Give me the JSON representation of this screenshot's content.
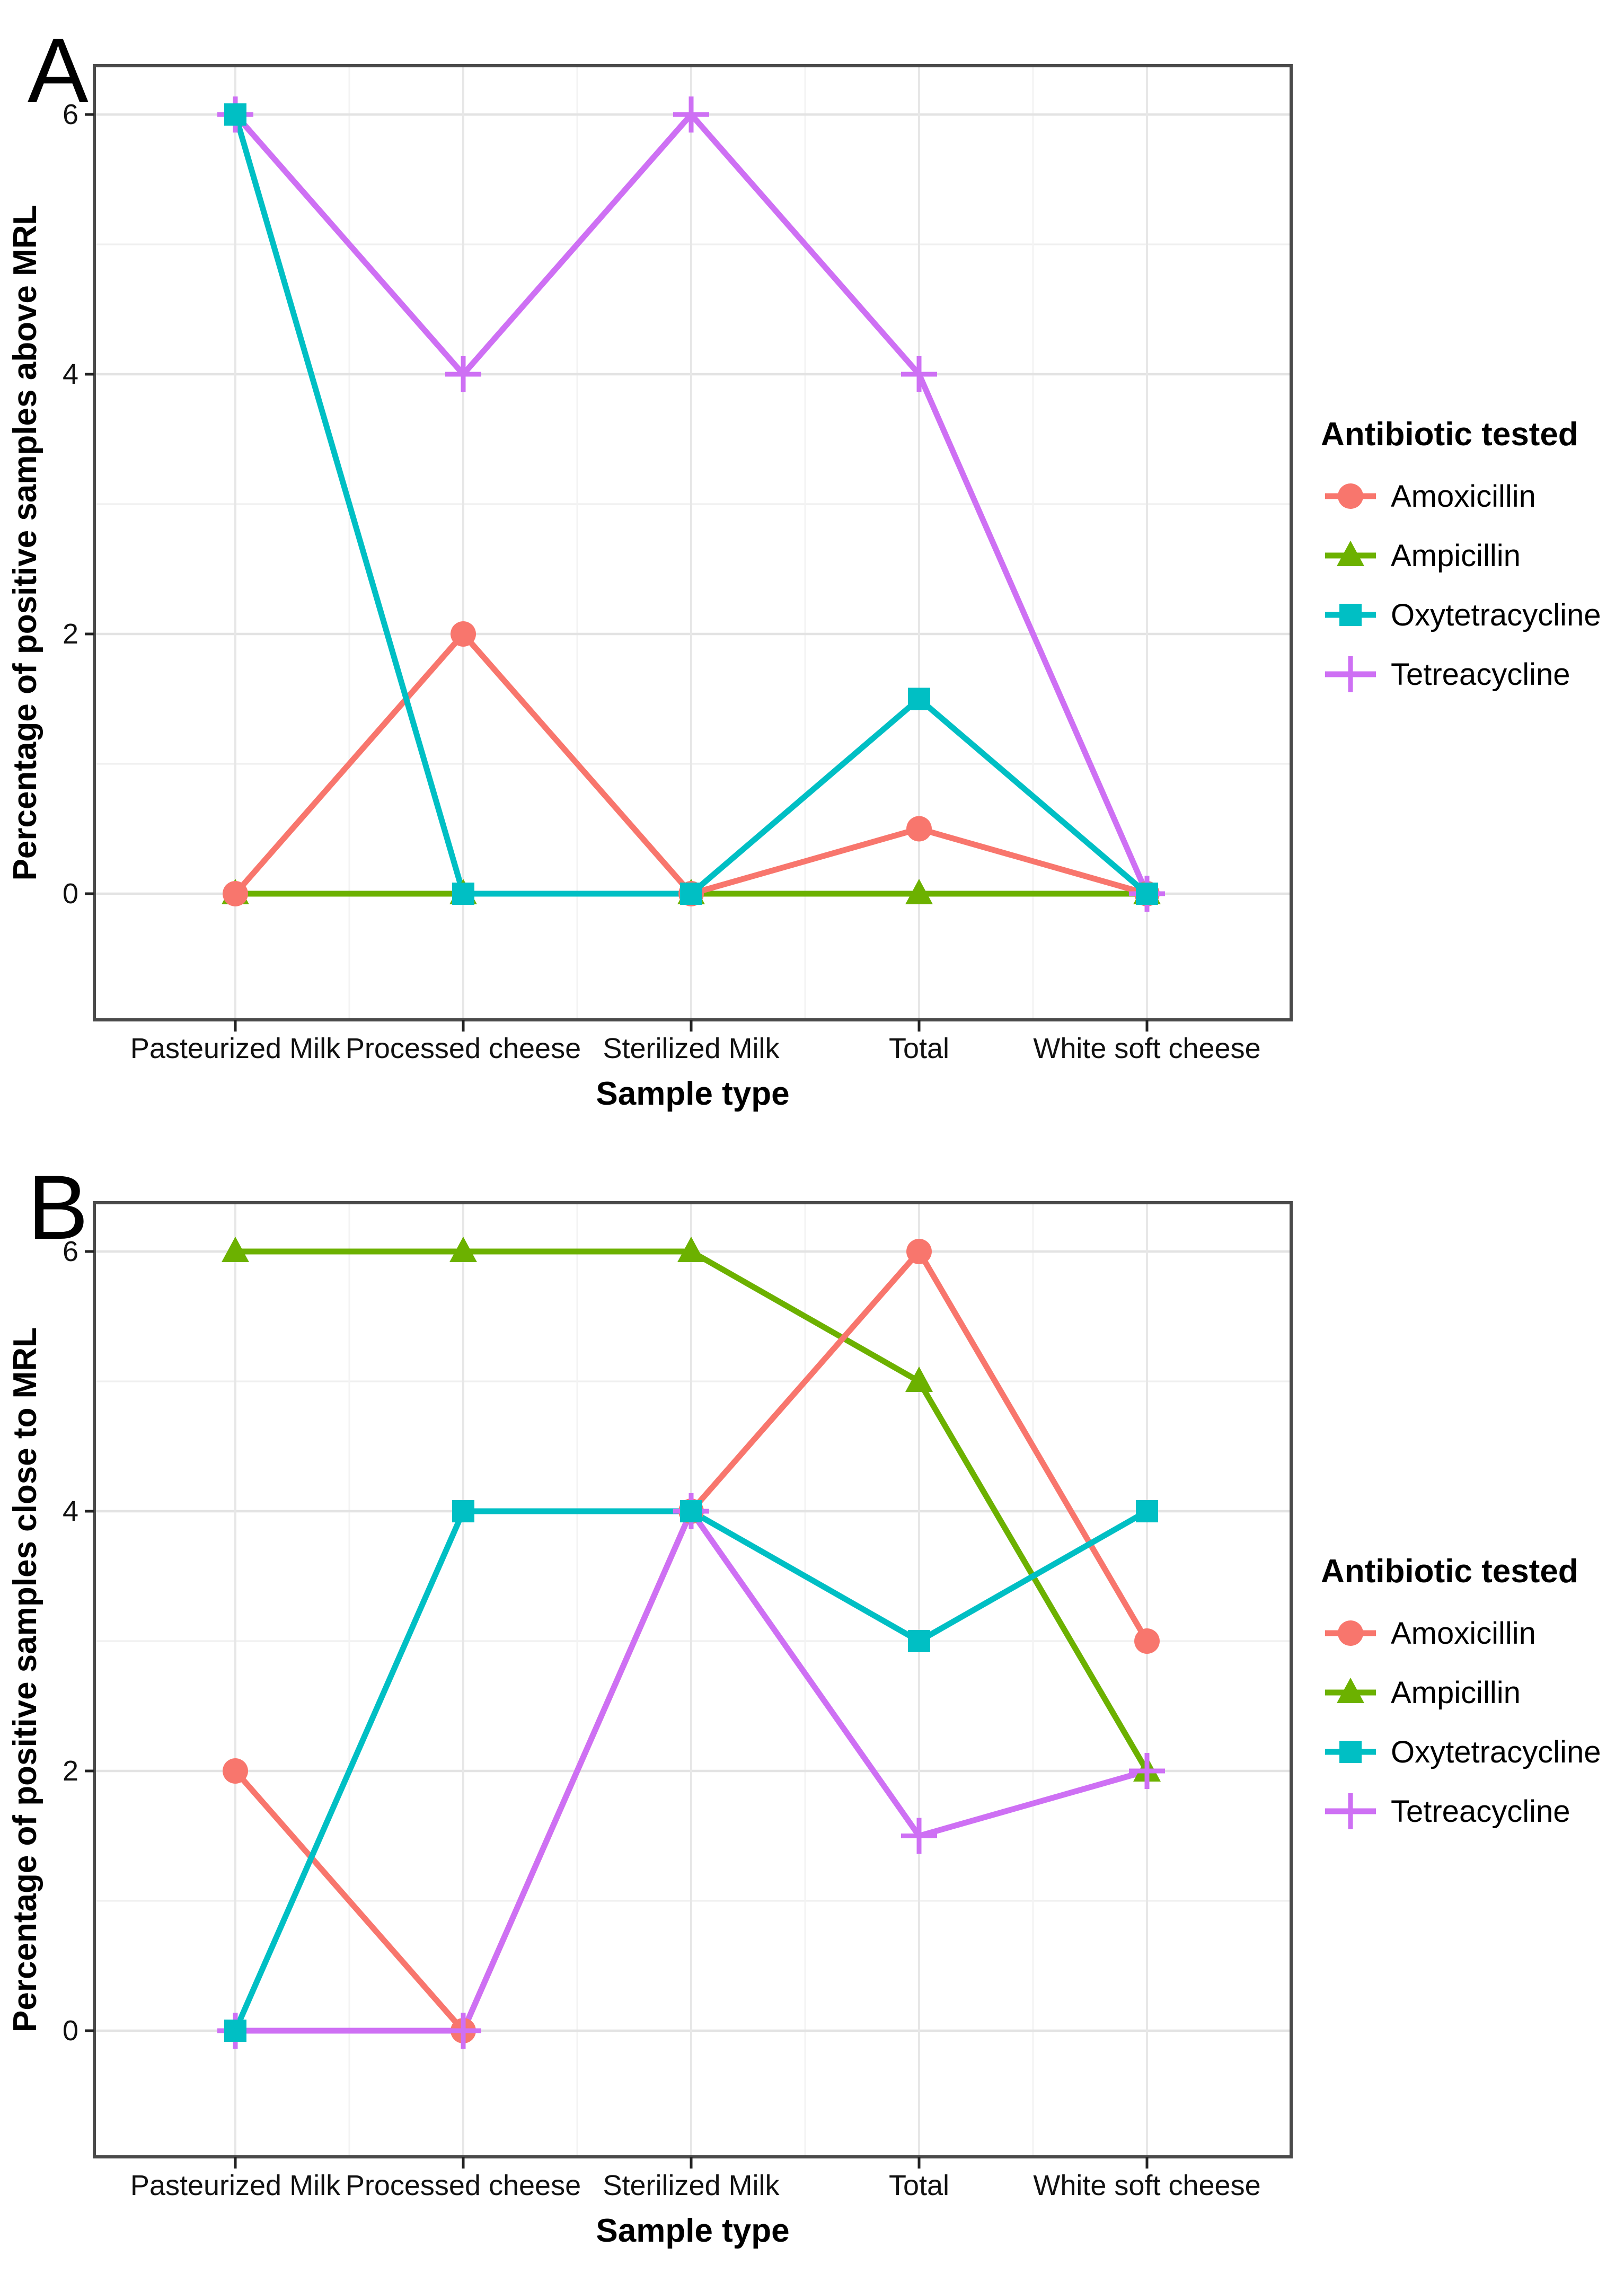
{
  "figure": {
    "panels": [
      {
        "label": "A"
      },
      {
        "label": "B"
      }
    ]
  },
  "legend": {
    "title": "Antibiotic tested"
  },
  "chart_data": [
    {
      "type": "line",
      "panel_label": "A",
      "title": "A",
      "categories": [
        "Pasteurized Milk",
        "Processed cheese",
        "Sterilized Milk",
        "Total",
        "White soft cheese"
      ],
      "xlabel": "Sample type",
      "ylabel": "Percentage of positive samples above MRL",
      "ylim": [
        0,
        6
      ],
      "yticks": [
        0,
        2,
        4,
        6
      ],
      "grid": true,
      "legend_position": "right",
      "legend_title": "Antibiotic tested",
      "series": [
        {
          "name": "Amoxicillin",
          "marker": "circle",
          "color": "#F8766D",
          "values": [
            0,
            2,
            0,
            0.5,
            0
          ]
        },
        {
          "name": "Ampicillin",
          "marker": "triangle",
          "color": "#6CB100",
          "values": [
            0,
            0,
            0,
            0,
            0
          ]
        },
        {
          "name": "Oxytetracycline",
          "marker": "square",
          "color": "#00BFC4",
          "values": [
            6,
            0,
            0,
            1.5,
            0
          ]
        },
        {
          "name": "Tetreacycline",
          "marker": "plus",
          "color": "#CE70F4",
          "values": [
            6,
            4,
            6,
            4,
            0
          ]
        }
      ]
    },
    {
      "type": "line",
      "panel_label": "B",
      "title": "B",
      "categories": [
        "Pasteurized Milk",
        "Processed cheese",
        "Sterilized Milk",
        "Total",
        "White soft cheese"
      ],
      "xlabel": "Sample type",
      "ylabel": "Percentage of positive samples close to MRL",
      "ylim": [
        0,
        6
      ],
      "yticks": [
        0,
        2,
        4,
        6
      ],
      "grid": true,
      "legend_position": "right",
      "legend_title": "Antibiotic tested",
      "series": [
        {
          "name": "Amoxicillin",
          "marker": "circle",
          "color": "#F8766D",
          "values": [
            2,
            0,
            4,
            6,
            3
          ]
        },
        {
          "name": "Ampicillin",
          "marker": "triangle",
          "color": "#6CB100",
          "values": [
            6,
            6,
            6,
            5,
            2
          ]
        },
        {
          "name": "Oxytetracycline",
          "marker": "square",
          "color": "#00BFC4",
          "values": [
            0,
            4,
            4,
            3,
            4
          ]
        },
        {
          "name": "Tetreacycline",
          "marker": "plus",
          "color": "#CE70F4",
          "values": [
            0,
            0,
            4,
            1.5,
            2
          ]
        }
      ]
    }
  ]
}
